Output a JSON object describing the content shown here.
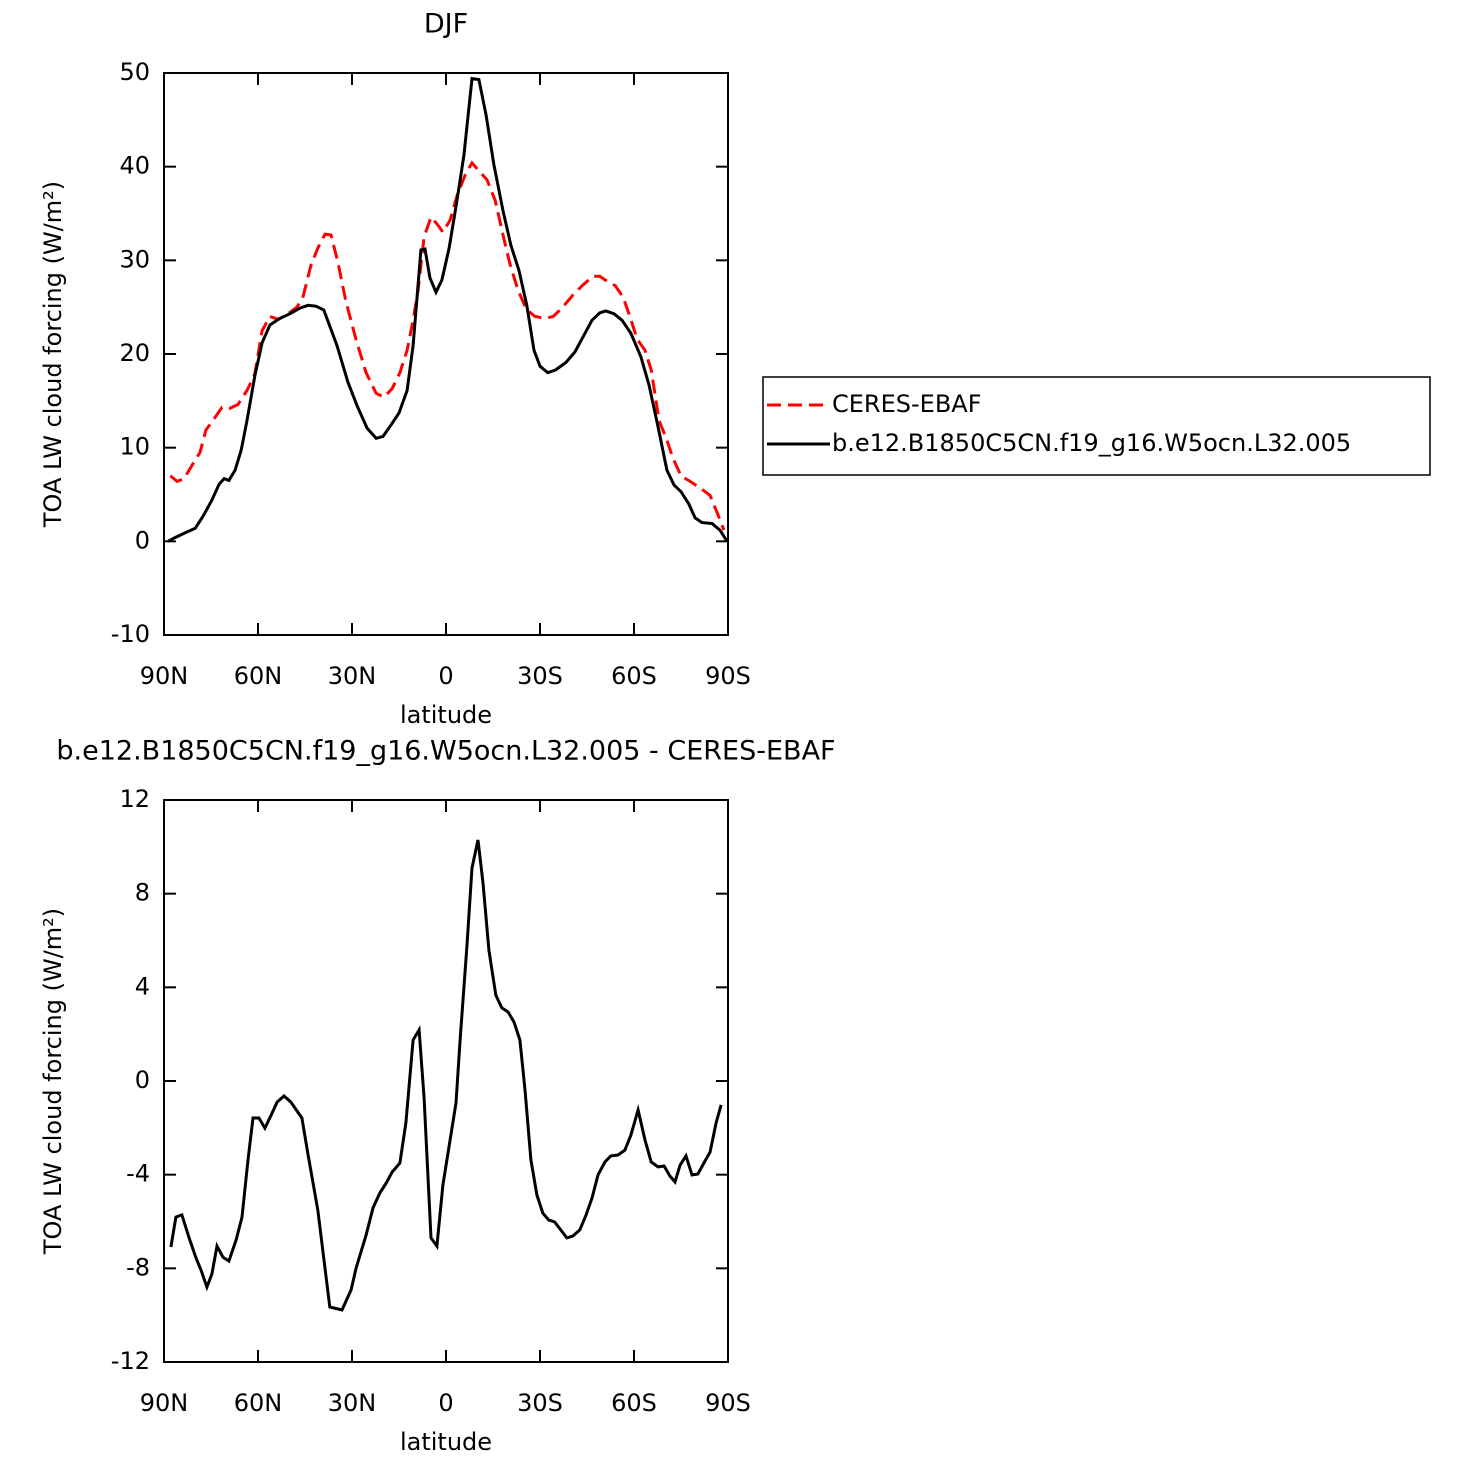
{
  "chart_data": [
    {
      "type": "line",
      "title": "DJF",
      "xlabel": "latitude",
      "ylabel": "TOA LW cloud forcing (W/m²)",
      "xlim": [
        90,
        -90
      ],
      "xticks": [
        {
          "value": 90,
          "label": "90N"
        },
        {
          "value": 60,
          "label": "60N"
        },
        {
          "value": 30,
          "label": "30N"
        },
        0,
        {
          "value": -30,
          "label": "30S"
        },
        {
          "value": -60,
          "label": "60S"
        },
        {
          "value": -90,
          "label": "90S"
        }
      ],
      "ylim": [
        -10,
        50
      ],
      "yticks": [
        -10,
        0,
        10,
        20,
        30,
        40,
        50
      ],
      "legend": "right",
      "series": [
        {
          "name": "CERES-EBAF",
          "color": "#ff0000",
          "style": "dashed",
          "x": [
            88,
            85.8,
            83.6,
            81.1,
            78.5,
            76.6,
            74.4,
            71.5,
            69,
            66.4,
            63.5,
            61,
            58.7,
            56.2,
            53.6,
            50.8,
            47.6,
            45.7,
            43.1,
            40.9,
            38.6,
            36.7,
            34.5,
            32,
            28.7,
            25.5,
            22.3,
            19.8,
            17.2,
            14.7,
            12.4,
            10.5,
            8.9,
            7,
            4.8,
            2.9,
            1,
            -1.3,
            -3.5,
            -6.1,
            -8.3,
            -10.9,
            -13.1,
            -15.7,
            -18.2,
            -20.5,
            -23,
            -25.6,
            -28.4,
            -31.6,
            -34.2,
            -37,
            -40.5,
            -43.8,
            -46.9,
            -49.1,
            -51.7,
            -54,
            -56.5,
            -58.7,
            -61,
            -63.5,
            -65.5,
            -68,
            -70.5,
            -72.4,
            -75,
            -77.9,
            -81.1,
            -84.3,
            -86.5,
            -88.7
          ],
          "values": [
            7.0,
            6.4,
            6.7,
            8.1,
            9.5,
            11.9,
            12.9,
            14.3,
            14.2,
            14.6,
            16.1,
            17.9,
            22.5,
            24.0,
            23.7,
            24.2,
            25.0,
            26.0,
            29.5,
            31.3,
            32.8,
            32.7,
            29.8,
            25.7,
            21.5,
            18.0,
            15.8,
            15.4,
            16.3,
            18.0,
            20.4,
            23.6,
            26.8,
            32.5,
            34.6,
            33.9,
            33.0,
            34.3,
            36.9,
            39.1,
            40.4,
            39.4,
            38.6,
            36.4,
            32.7,
            29.5,
            26.8,
            24.8,
            24.0,
            23.8,
            24.0,
            24.9,
            26.3,
            27.4,
            28.3,
            28.3,
            27.7,
            27.3,
            26.1,
            24.0,
            21.6,
            20.4,
            18.3,
            12.9,
            10.8,
            8.9,
            7.0,
            6.4,
            5.7,
            4.9,
            3.1,
            1.2
          ]
        },
        {
          "name": "b.e12.B1850C5CN.f19_g16.W5ocn.L32.005",
          "color": "#000000",
          "style": "solid",
          "x": [
            88.7,
            86.5,
            83.3,
            80,
            77.5,
            74.7,
            72.4,
            70.8,
            69.3,
            67.3,
            65.4,
            63.5,
            61,
            58.7,
            56.2,
            53,
            49.8,
            46.6,
            44,
            41.5,
            39,
            34.8,
            31.3,
            28.4,
            25.2,
            22.3,
            20.1,
            17.6,
            15,
            12.4,
            10.5,
            8,
            6.7,
            5.1,
            3.2,
            1.3,
            -1,
            -3.5,
            -5.7,
            -8.3,
            -10.5,
            -12.8,
            -15.3,
            -18.2,
            -20.7,
            -23.3,
            -25.8,
            -28.1,
            -30,
            -32.5,
            -35,
            -38.3,
            -41.1,
            -44,
            -46.6,
            -49.1,
            -51,
            -53.6,
            -56.2,
            -59,
            -62.2,
            -64.8,
            -67.7,
            -70.5,
            -72.8,
            -75,
            -77.5,
            -79.5,
            -81.7,
            -84.9,
            -87.4,
            -89.7
          ],
          "values": [
            0.0,
            0.4,
            0.9,
            1.4,
            2.7,
            4.4,
            6.1,
            6.7,
            6.5,
            7.6,
            9.7,
            12.9,
            17.7,
            21.2,
            23.1,
            23.8,
            24.3,
            24.9,
            25.2,
            25.1,
            24.7,
            20.9,
            17.0,
            14.5,
            12.1,
            11.0,
            11.2,
            12.4,
            13.7,
            16.1,
            20.9,
            31.1,
            31.2,
            28.1,
            26.6,
            27.9,
            31.3,
            36.4,
            41.2,
            49.4,
            49.3,
            45.5,
            40.2,
            35.3,
            31.6,
            28.9,
            25.2,
            20.4,
            18.7,
            18.0,
            18.3,
            19.1,
            20.2,
            22.0,
            23.6,
            24.4,
            24.6,
            24.3,
            23.6,
            22.2,
            19.7,
            16.7,
            12.2,
            7.6,
            6.0,
            5.3,
            4.0,
            2.5,
            2.0,
            1.9,
            1.2,
            0.0
          ]
        }
      ]
    },
    {
      "type": "line",
      "title": "b.e12.B1850C5CN.f19_g16.W5ocn.L32.005 - CERES-EBAF",
      "xlabel": "latitude",
      "ylabel": "TOA LW cloud forcing (W/m²)",
      "xlim": [
        90,
        -90
      ],
      "xticks": [
        {
          "value": 90,
          "label": "90N"
        },
        {
          "value": 60,
          "label": "60N"
        },
        {
          "value": 30,
          "label": "30N"
        },
        0,
        {
          "value": -30,
          "label": "30S"
        },
        {
          "value": -60,
          "label": "60S"
        },
        {
          "value": -90,
          "label": "90S"
        }
      ],
      "ylim": [
        -12,
        12
      ],
      "yticks": [
        -12,
        -8,
        -4,
        0,
        4,
        8,
        12
      ],
      "series": [
        {
          "color": "#000000",
          "style": "solid",
          "x": [
            87.8,
            86.2,
            84.3,
            82,
            79.8,
            78.2,
            76.3,
            74.7,
            73.1,
            71.2,
            69.3,
            67,
            65.1,
            63.2,
            61.6,
            59.7,
            57.8,
            55.8,
            53.9,
            51.7,
            49.5,
            46,
            44,
            40.9,
            37.1,
            33.2,
            30.3,
            28.7,
            25.5,
            23.3,
            21.1,
            19.1,
            17.2,
            14.7,
            12.8,
            10.5,
            8.6,
            7,
            4.8,
            2.9,
            1,
            -3.2,
            -4.5,
            -6.7,
            -8.3,
            -10.2,
            -11.8,
            -13.7,
            -15.9,
            -17.8,
            -19.8,
            -21.7,
            -23.6,
            -25.2,
            -27.1,
            -29,
            -30.9,
            -32.8,
            -34.7,
            -36.6,
            -38.6,
            -40.5,
            -42.7,
            -44.7,
            -46.6,
            -48.5,
            -50.7,
            -52.6,
            -54.9,
            -57.1,
            -59,
            -61.3,
            -63.5,
            -65.5,
            -67.7,
            -69.6,
            -71.5,
            -73.1,
            -74.7,
            -76.6,
            -78.5,
            -80.4,
            -82.3,
            -84.3,
            -86.2,
            -87.8
          ],
          "values": [
            -7.09,
            -5.81,
            -5.72,
            -6.7,
            -7.56,
            -8.07,
            -8.8,
            -8.24,
            -7.05,
            -7.52,
            -7.69,
            -6.79,
            -5.81,
            -3.37,
            -1.58,
            -1.58,
            -2.01,
            -1.45,
            -0.9,
            -0.64,
            -0.9,
            -1.58,
            -3.16,
            -5.51,
            -9.65,
            -9.78,
            -8.92,
            -7.99,
            -6.58,
            -5.42,
            -4.78,
            -4.36,
            -3.89,
            -3.5,
            -1.79,
            1.75,
            2.18,
            -0.73,
            -6.7,
            -7.05,
            -4.44,
            -0.94,
            1.75,
            5.81,
            9.1,
            10.29,
            8.46,
            5.59,
            3.67,
            3.12,
            2.95,
            2.52,
            1.75,
            -0.38,
            -3.37,
            -4.87,
            -5.64,
            -5.94,
            -6.02,
            -6.36,
            -6.7,
            -6.62,
            -6.36,
            -5.72,
            -5.0,
            -4.01,
            -3.46,
            -3.2,
            -3.16,
            -2.95,
            -2.31,
            -1.24,
            -2.52,
            -3.46,
            -3.67,
            -3.63,
            -4.06,
            -4.31,
            -3.59,
            -3.2,
            -4.01,
            -3.97,
            -3.5,
            -3.03,
            -1.79,
            -1.02
          ]
        }
      ]
    }
  ]
}
